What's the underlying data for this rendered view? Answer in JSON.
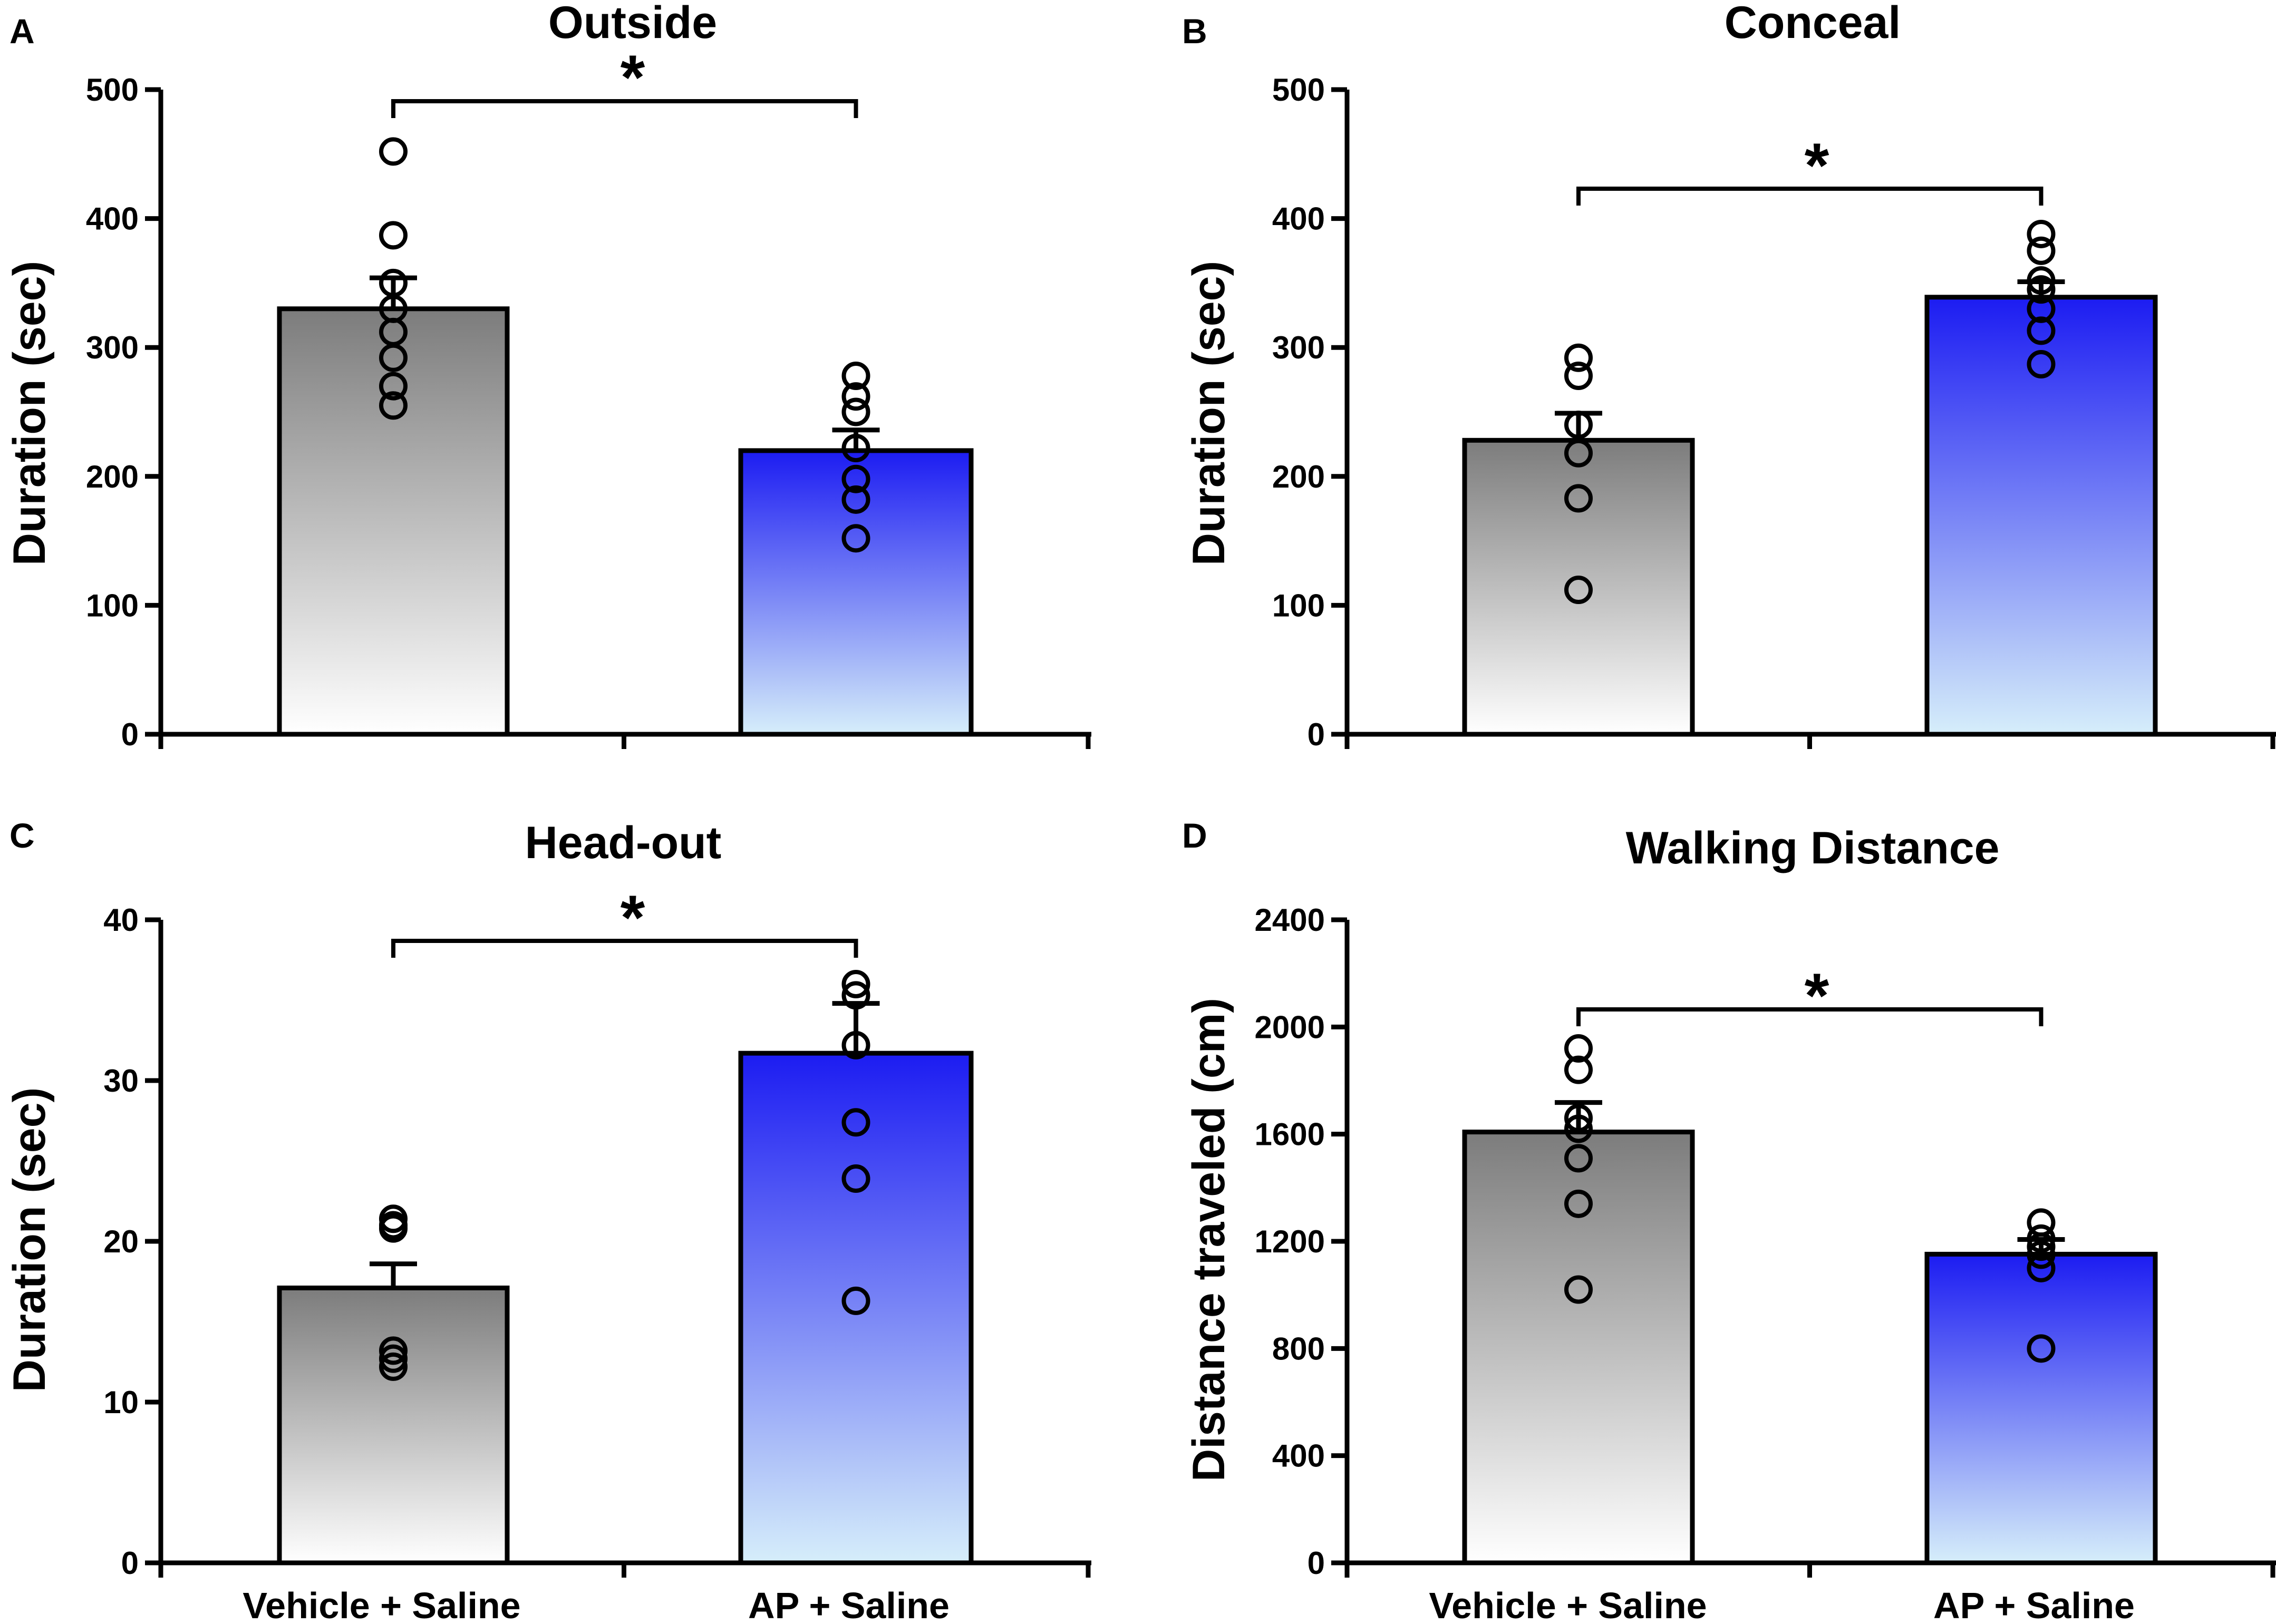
{
  "chart_data": [
    {
      "panel": "A",
      "type": "bar",
      "title": "Outside",
      "ylabel": "Duration (sec)",
      "xlabel": "",
      "ylim": [
        0,
        500
      ],
      "yticks": [
        0,
        100,
        200,
        300,
        400,
        500
      ],
      "categories": [
        "",
        ""
      ],
      "values": [
        330,
        220
      ],
      "errors": [
        24,
        16
      ],
      "points": [
        [
          452,
          387,
          350,
          330,
          312,
          292,
          270,
          255
        ],
        [
          278,
          262,
          250,
          222,
          198,
          182,
          152
        ]
      ],
      "significance": "*"
    },
    {
      "panel": "B",
      "type": "bar",
      "title": "Conceal",
      "ylabel": "Duration (sec)",
      "xlabel": "",
      "ylim": [
        0,
        500
      ],
      "yticks": [
        0,
        100,
        200,
        300,
        400,
        500
      ],
      "categories": [
        "",
        ""
      ],
      "values": [
        228,
        339
      ],
      "errors": [
        21,
        12
      ],
      "points": [
        [
          292,
          278,
          240,
          218,
          183,
          112
        ],
        [
          388,
          375,
          352,
          345,
          330,
          313,
          287
        ]
      ],
      "significance": "*"
    },
    {
      "panel": "C",
      "type": "bar",
      "title": "Head-out",
      "ylabel": "Duration (sec)",
      "xlabel": "",
      "ylim": [
        0,
        40
      ],
      "yticks": [
        0,
        10,
        20,
        30,
        40
      ],
      "categories": [
        "Vehicle + Saline",
        "AP + Saline"
      ],
      "values": [
        17.1,
        31.7
      ],
      "errors": [
        1.5,
        3.1
      ],
      "points": [
        [
          21.4,
          21.0,
          20.8,
          13.2,
          12.7,
          12.2
        ],
        [
          36.0,
          35.3,
          32.2,
          27.4,
          23.9,
          16.3
        ]
      ],
      "significance": "*"
    },
    {
      "panel": "D",
      "type": "bar",
      "title": "Walking Distance",
      "ylabel": "Distance traveled (cm)",
      "xlabel": "",
      "ylim": [
        0,
        2400
      ],
      "yticks": [
        0,
        400,
        800,
        1200,
        1600,
        2000,
        2400
      ],
      "categories": [
        "Vehicle + Saline",
        "AP + Saline"
      ],
      "values": [
        1608,
        1152
      ],
      "errors": [
        110,
        55
      ],
      "points": [
        [
          1920,
          1840,
          1660,
          1620,
          1510,
          1340,
          1020
        ],
        [
          1270,
          1210,
          1180,
          1150,
          1100,
          800
        ]
      ],
      "significance": "*"
    }
  ]
}
